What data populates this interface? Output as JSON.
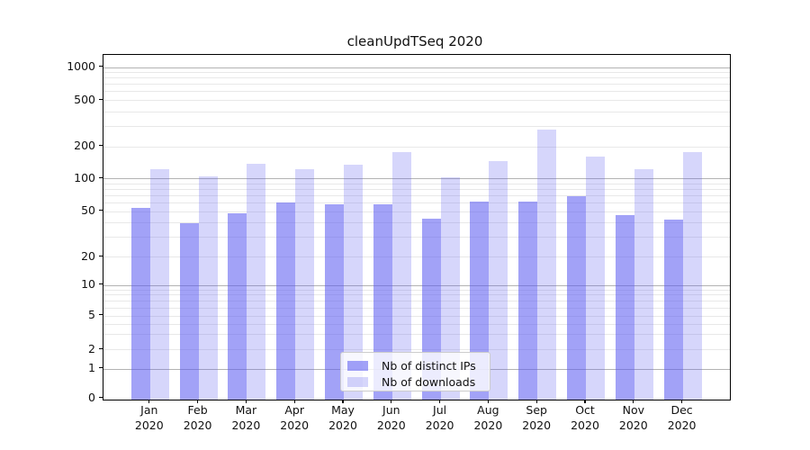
{
  "title": "cleanUpdTSeq 2020",
  "chart_data": {
    "type": "bar",
    "title": "cleanUpdTSeq 2020",
    "categories": [
      "Jan",
      "Feb",
      "Mar",
      "Apr",
      "May",
      "Jun",
      "Jul",
      "Aug",
      "Sep",
      "Oct",
      "Nov",
      "Dec"
    ],
    "category_year": "2020",
    "series": [
      {
        "name": "Nb of distinct IPs",
        "base_color": "#5a5af0",
        "alpha": 0.56,
        "values": [
          53,
          39,
          48,
          60,
          58,
          58,
          43,
          61,
          61,
          68,
          46,
          42
        ]
      },
      {
        "name": "Nb of downloads",
        "base_color": "#5a5af0",
        "alpha": 0.25,
        "values": [
          122,
          105,
          137,
          121,
          133,
          176,
          103,
          144,
          280,
          160,
          122,
          175
        ]
      }
    ],
    "yscale": "symlog",
    "yticks": [
      0,
      1,
      2,
      5,
      10,
      20,
      50,
      100,
      200,
      500,
      1000
    ],
    "ylim": [
      0,
      1300
    ],
    "xlabel": "",
    "ylabel": "",
    "grid": "minor-and-major-horizontal",
    "legend_position": "lower-center-inside"
  },
  "legend": {
    "items": [
      "Nb of distinct IPs",
      "Nb of downloads"
    ]
  },
  "colors": {
    "bar_base": "#5a5af0",
    "grid_major": "#b3b3b3",
    "grid_minor": "#e8e8e8",
    "axis": "#000000",
    "legend_border": "#cccccc",
    "text": "#111111"
  }
}
